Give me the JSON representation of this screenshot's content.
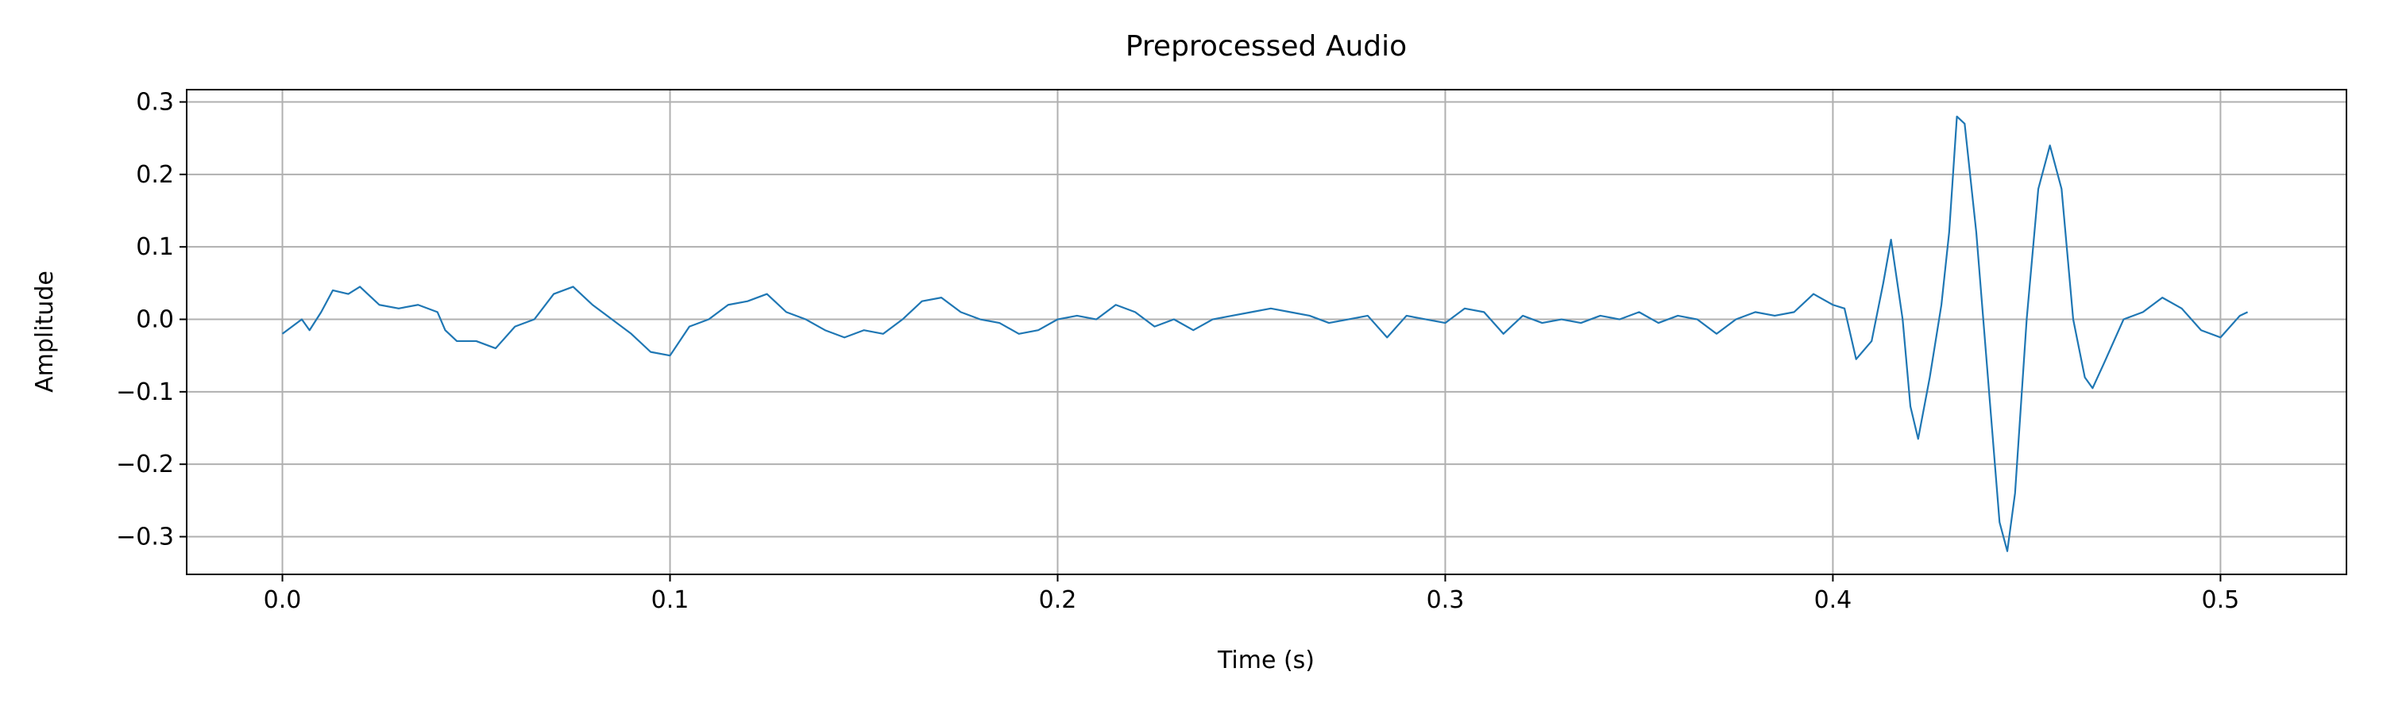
{
  "chart_data": {
    "type": "line",
    "title": "Preprocessed Audio",
    "x_label": "Time (s)",
    "y_label": "Amplitude",
    "color": "#1f77b4",
    "grid": true,
    "xlim": [
      -0.0247,
      0.5325
    ],
    "ylim": [
      -0.352,
      0.317
    ],
    "xticks": [
      {
        "value": 0,
        "label": "0.0"
      },
      {
        "value": 0.1,
        "label": "0.1"
      },
      {
        "value": 0.2,
        "label": "0.2"
      },
      {
        "value": 0.3,
        "label": "0.3"
      },
      {
        "value": 0.4,
        "label": "0.4"
      },
      {
        "value": 0.5,
        "label": "0.5"
      }
    ],
    "yticks": [
      {
        "value": -0.3,
        "label": "−0.3"
      },
      {
        "value": -0.2,
        "label": "−0.2"
      },
      {
        "value": -0.1,
        "label": "−0.1"
      },
      {
        "value": 0,
        "label": "0.0"
      },
      {
        "value": 0.1,
        "label": "0.1"
      },
      {
        "value": 0.2,
        "label": "0.2"
      },
      {
        "value": 0.3,
        "label": "0.3"
      }
    ],
    "x": [
      0,
      0.005,
      0.007,
      0.01,
      0.013,
      0.017,
      0.02,
      0.025,
      0.03,
      0.035,
      0.04,
      0.042,
      0.045,
      0.05,
      0.055,
      0.06,
      0.065,
      0.07,
      0.075,
      0.08,
      0.085,
      0.09,
      0.095,
      0.1,
      0.105,
      0.11,
      0.115,
      0.12,
      0.125,
      0.13,
      0.135,
      0.14,
      0.145,
      0.15,
      0.155,
      0.16,
      0.165,
      0.17,
      0.175,
      0.18,
      0.185,
      0.19,
      0.195,
      0.2,
      0.205,
      0.21,
      0.215,
      0.22,
      0.225,
      0.23,
      0.235,
      0.24,
      0.245,
      0.25,
      0.255,
      0.26,
      0.265,
      0.27,
      0.275,
      0.28,
      0.285,
      0.29,
      0.295,
      0.3,
      0.305,
      0.31,
      0.315,
      0.32,
      0.325,
      0.33,
      0.335,
      0.34,
      0.345,
      0.35,
      0.355,
      0.36,
      0.365,
      0.37,
      0.375,
      0.38,
      0.385,
      0.39,
      0.395,
      0.4,
      0.403,
      0.406,
      0.41,
      0.413,
      0.415,
      0.418,
      0.42,
      0.422,
      0.425,
      0.428,
      0.43,
      0.432,
      0.434,
      0.437,
      0.44,
      0.443,
      0.445,
      0.447,
      0.45,
      0.453,
      0.456,
      0.459,
      0.462,
      0.465,
      0.467,
      0.47,
      0.475,
      0.48,
      0.485,
      0.49,
      0.495,
      0.5,
      0.505,
      0.507
    ],
    "values": [
      -0.02,
      0.0,
      -0.015,
      0.01,
      0.04,
      0.035,
      0.045,
      0.02,
      0.015,
      0.02,
      0.01,
      -0.015,
      -0.03,
      -0.03,
      -0.04,
      -0.01,
      0.0,
      0.035,
      0.045,
      0.02,
      0.0,
      -0.02,
      -0.045,
      -0.05,
      -0.01,
      0.0,
      0.02,
      0.025,
      0.035,
      0.01,
      0.0,
      -0.015,
      -0.025,
      -0.015,
      -0.02,
      0.0,
      0.025,
      0.03,
      0.01,
      0.0,
      -0.005,
      -0.02,
      -0.015,
      0.0,
      0.005,
      0.0,
      0.02,
      0.01,
      -0.01,
      0.0,
      -0.015,
      0.0,
      0.005,
      0.01,
      0.015,
      0.01,
      0.005,
      -0.005,
      0.0,
      0.005,
      -0.025,
      0.005,
      0.0,
      -0.005,
      0.015,
      0.01,
      -0.02,
      0.005,
      -0.005,
      0.0,
      -0.005,
      0.005,
      0.0,
      0.01,
      -0.005,
      0.005,
      0.0,
      -0.02,
      0.0,
      0.01,
      0.005,
      0.01,
      0.035,
      0.02,
      0.015,
      -0.055,
      -0.03,
      0.05,
      0.11,
      0.0,
      -0.12,
      -0.165,
      -0.08,
      0.02,
      0.12,
      0.28,
      0.27,
      0.12,
      -0.08,
      -0.28,
      -0.32,
      -0.24,
      0.0,
      0.18,
      0.24,
      0.18,
      0.0,
      -0.08,
      -0.095,
      -0.06,
      0.0,
      0.01,
      0.03,
      0.015,
      -0.015,
      -0.025,
      0.005,
      0.01
    ]
  }
}
